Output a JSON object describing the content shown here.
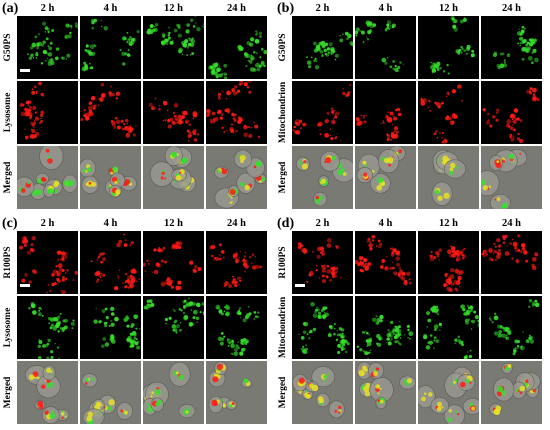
{
  "panels": [
    {
      "label": "(a)",
      "columns": [
        "2 h",
        "4 h",
        "12 h",
        "24 h"
      ],
      "rows": [
        {
          "label": "G50PS",
          "channel": "green"
        },
        {
          "label": "Lysosome",
          "channel": "red"
        },
        {
          "label": "Merged",
          "channel": "merged"
        }
      ],
      "scale_bar": true
    },
    {
      "label": "(b)",
      "columns": [
        "2 h",
        "4 h",
        "12 h",
        "24 h"
      ],
      "rows": [
        {
          "label": "G50PS",
          "channel": "green"
        },
        {
          "label": "Mitochondrion",
          "channel": "red"
        },
        {
          "label": "Merged",
          "channel": "merged"
        }
      ],
      "scale_bar": false
    },
    {
      "label": "(c)",
      "columns": [
        "2 h",
        "4 h",
        "12 h",
        "24 h"
      ],
      "rows": [
        {
          "label": "R100PS",
          "channel": "red"
        },
        {
          "label": "Lysosome",
          "channel": "green"
        },
        {
          "label": "Merged",
          "channel": "merged"
        }
      ],
      "scale_bar": true
    },
    {
      "label": "(d)",
      "columns": [
        "2 h",
        "4 h",
        "12 h",
        "24 h"
      ],
      "rows": [
        {
          "label": "R100PS",
          "channel": "red"
        },
        {
          "label": "Mitochondrion",
          "channel": "green"
        },
        {
          "label": "Merged",
          "channel": "merged"
        }
      ],
      "scale_bar": true
    }
  ],
  "colors": {
    "green": "#35e02a",
    "red": "#ff1a14",
    "yellow": "#e8e21e",
    "merged_bg": "#7a7a74",
    "background": "#000000"
  }
}
